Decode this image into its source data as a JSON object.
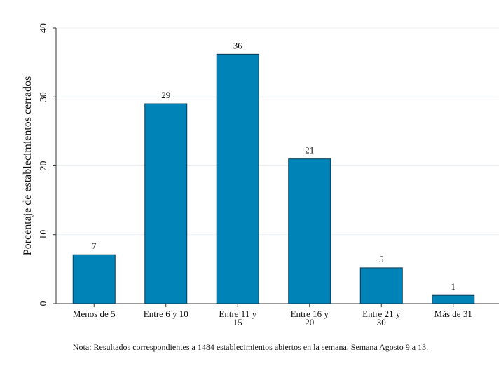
{
  "chart_data": {
    "type": "bar",
    "categories": [
      [
        "Menos de 5"
      ],
      [
        "Entre 6 y 10"
      ],
      [
        "Entre 11 y",
        "15"
      ],
      [
        "Entre 16 y",
        "20"
      ],
      [
        "Entre 21 y",
        "30"
      ],
      [
        "Más de 31"
      ]
    ],
    "values": [
      7.1,
      29.0,
      36.2,
      21.0,
      5.2,
      1.2
    ],
    "value_labels": [
      "7",
      "29",
      "36",
      "21",
      "5",
      "1"
    ],
    "ylabel": "Porcentaje de establecimientos cerrados",
    "ylim": [
      0,
      40
    ],
    "yticks": [
      0,
      10,
      20,
      30,
      40
    ],
    "grid": true,
    "bar_color": "#0083b7",
    "bar_edge_color": "#0b3a52",
    "note": "Nota: Resultados correspondientes a 1484 establecimientos abiertos en la semana. Semana Agosto 9 a 13."
  }
}
